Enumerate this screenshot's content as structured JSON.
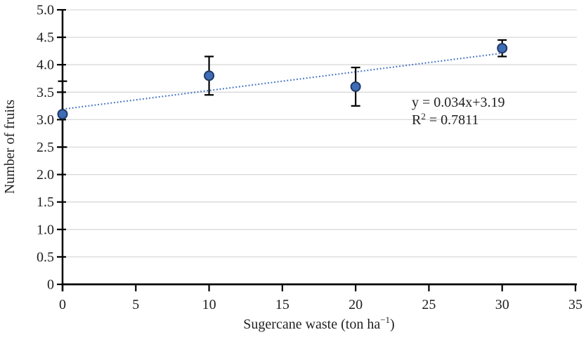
{
  "chart_data": {
    "type": "scatter",
    "title": "",
    "xlabel": {
      "pre": "Sugercane waste (ton ha",
      "sup": "−1",
      "post": ")"
    },
    "ylabel": "Number of fruits",
    "x": [
      0,
      10,
      20,
      30
    ],
    "y": [
      3.1,
      3.8,
      3.6,
      4.3
    ],
    "yerr": [
      0.6,
      0.35,
      0.35,
      0.15
    ],
    "xlim": [
      0,
      35
    ],
    "ylim": [
      0,
      5
    ],
    "xticks": [
      "0",
      "5",
      "10",
      "15",
      "20",
      "25",
      "30",
      "35"
    ],
    "yticks": [
      "0",
      "0.5",
      "1.0",
      "1.5",
      "2.0",
      "2.5",
      "3.0",
      "3.5",
      "4.0",
      "4.5",
      "5.0"
    ],
    "grid": "horizontal-only",
    "legend": "none",
    "trendline": {
      "slope": 0.034,
      "intercept": 3.19,
      "x_start": 0,
      "x_end": 30,
      "style": "dotted"
    },
    "annotation": {
      "equation": "y = 0.034x+3.19",
      "r_squared": {
        "pre": "R",
        "sup": "2",
        "post": " = 0.7811"
      }
    },
    "colors": {
      "marker_fill": "#3E6DB5",
      "marker_stroke": "#1F3864",
      "trendline": "#4472C4",
      "errorbar": "#000000",
      "axis": "#000000",
      "gridline": "#D9D9D9",
      "text": "#1F1F1F"
    }
  }
}
